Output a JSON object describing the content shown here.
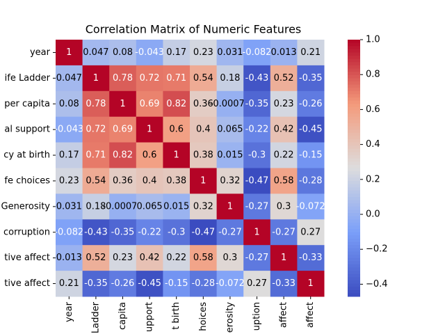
{
  "chart_data": {
    "type": "heatmap",
    "title": "Correlation Matrix of Numeric Features",
    "row_labels": [
      "year",
      "ife Ladder",
      "per capita",
      "al support",
      "cy at birth",
      "fe choices",
      "Generosity",
      "corruption",
      "tive affect",
      "tive affect"
    ],
    "col_labels": [
      "year",
      "Ladder",
      "capita",
      "upport",
      "t birth",
      "hoices",
      "erosity",
      "uption",
      "affect",
      "affect"
    ],
    "values": [
      [
        1,
        0.047,
        0.08,
        -0.043,
        0.17,
        0.23,
        0.031,
        -0.082,
        0.013,
        0.21
      ],
      [
        0.047,
        1,
        0.78,
        0.72,
        0.71,
        0.54,
        0.18,
        -0.43,
        0.52,
        -0.35
      ],
      [
        0.08,
        0.78,
        1,
        0.69,
        0.82,
        0.36,
        -0.00077,
        -0.35,
        0.23,
        -0.26
      ],
      [
        -0.043,
        0.72,
        0.69,
        1,
        0.6,
        0.4,
        0.065,
        -0.22,
        0.42,
        -0.45
      ],
      [
        0.17,
        0.71,
        0.82,
        0.6,
        1,
        0.38,
        0.015,
        -0.3,
        0.22,
        -0.15
      ],
      [
        0.23,
        0.54,
        0.36,
        0.4,
        0.38,
        1,
        0.32,
        -0.47,
        0.58,
        -0.28
      ],
      [
        0.031,
        0.18,
        -0.00077,
        0.065,
        0.015,
        0.32,
        1,
        -0.27,
        0.3,
        -0.072
      ],
      [
        -0.082,
        -0.43,
        -0.35,
        -0.22,
        -0.3,
        -0.47,
        -0.27,
        1,
        -0.27,
        0.27
      ],
      [
        0.013,
        0.52,
        0.23,
        0.42,
        0.22,
        0.58,
        0.3,
        -0.27,
        1,
        -0.33
      ],
      [
        0.21,
        -0.35,
        -0.26,
        -0.45,
        -0.15,
        -0.28,
        -0.072,
        0.27,
        -0.33,
        1
      ]
    ],
    "colormap": "coolwarm",
    "vlim": [
      -0.47,
      1
    ],
    "colorbar_ticks": [
      {
        "value": -0.4,
        "label": "−0.4"
      },
      {
        "value": -0.2,
        "label": "−0.2"
      },
      {
        "value": 0,
        "label": "0.0"
      },
      {
        "value": 0.2,
        "label": "0.2"
      },
      {
        "value": 0.4,
        "label": "0.4"
      },
      {
        "value": 0.6,
        "label": "0.6"
      },
      {
        "value": 0.8,
        "label": "0.8"
      },
      {
        "value": 1,
        "label": "1.0"
      }
    ]
  }
}
